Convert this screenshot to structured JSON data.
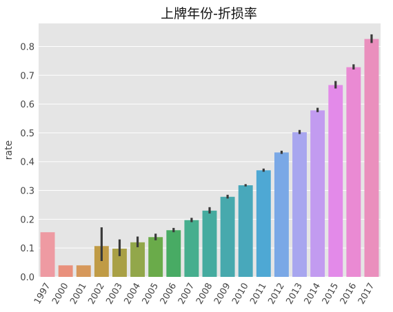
{
  "chart_data": {
    "type": "bar",
    "title": "上牌年份-折损率",
    "xlabel": "",
    "ylabel": "rate",
    "ylim": [
      0,
      0.88
    ],
    "yticks": [
      0.0,
      0.1,
      0.2,
      0.3,
      0.4,
      0.5,
      0.6,
      0.7,
      0.8
    ],
    "grid": true,
    "categories": [
      "1997",
      "2000",
      "2001",
      "2002",
      "2003",
      "2004",
      "2005",
      "2006",
      "2007",
      "2008",
      "2009",
      "2010",
      "2011",
      "2012",
      "2013",
      "2014",
      "2015",
      "2016",
      "2017"
    ],
    "values": [
      0.155,
      0.04,
      0.04,
      0.107,
      0.098,
      0.12,
      0.138,
      0.162,
      0.197,
      0.23,
      0.278,
      0.318,
      0.37,
      0.432,
      0.502,
      0.578,
      0.666,
      0.728,
      0.826
    ],
    "error_low": [
      null,
      null,
      null,
      0.055,
      0.072,
      0.103,
      0.127,
      0.155,
      0.19,
      0.22,
      0.272,
      0.314,
      0.365,
      0.427,
      0.496,
      0.572,
      0.654,
      0.72,
      0.812
    ],
    "error_high": [
      null,
      null,
      null,
      0.172,
      0.13,
      0.14,
      0.15,
      0.17,
      0.205,
      0.242,
      0.285,
      0.322,
      0.376,
      0.438,
      0.51,
      0.587,
      0.68,
      0.738,
      0.842
    ],
    "colors": [
      "#ee9aa2",
      "#e9907c",
      "#d6985a",
      "#c09b45",
      "#a9a045",
      "#92a74a",
      "#6aab4a",
      "#48ab64",
      "#46ae8e",
      "#45ab9f",
      "#47a9ad",
      "#48a8bb",
      "#4ea8d4",
      "#7aa8e6",
      "#a8a6ef",
      "#c29bf0",
      "#e38ae9",
      "#ea8ad3",
      "#ea8fbd"
    ]
  }
}
